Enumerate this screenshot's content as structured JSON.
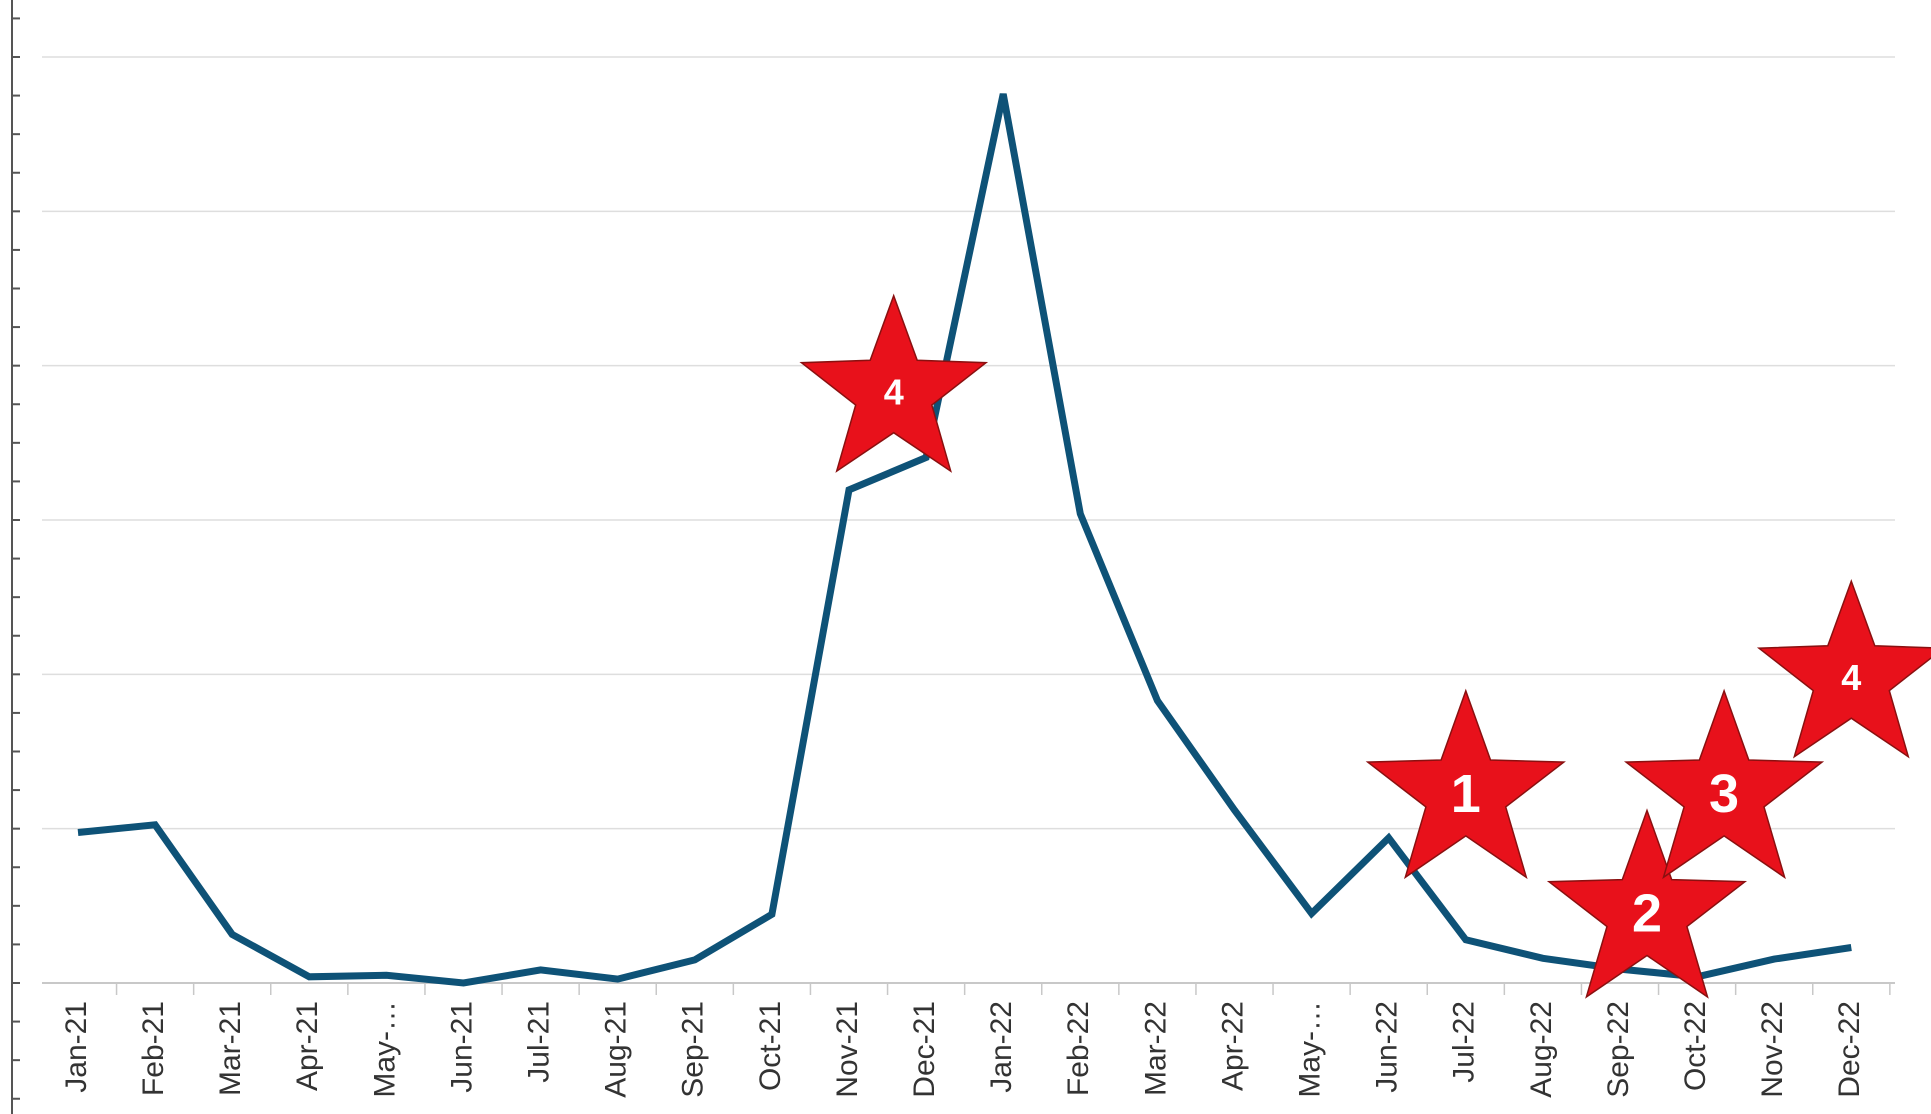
{
  "chart_data": {
    "type": "line",
    "title": "",
    "xlabel": "",
    "ylabel": "",
    "categories": [
      "Jan-21",
      "Feb-21",
      "Mar-21",
      "Apr-21",
      "May-…",
      "Jun-21",
      "Jul-21",
      "Aug-21",
      "Sep-21",
      "Oct-21",
      "Nov-21",
      "Dec-21",
      "Jan-22",
      "Feb-22",
      "Mar-22",
      "Apr-22",
      "May-…",
      "Jun-22",
      "Jul-22",
      "Aug-22",
      "Sep-22",
      "Oct-22",
      "Nov-22",
      "Dec-22"
    ],
    "series": [
      {
        "color": "#0e5277",
        "values": [
          19.5,
          20.5,
          6.3,
          0.8,
          1.0,
          0,
          1.7,
          0.5,
          3.0,
          8.9,
          63.9,
          68.1,
          115.2,
          60.8,
          36.6,
          22.4,
          9.0,
          18.8,
          5.6,
          3.2,
          1.8,
          0.8,
          3.1,
          4.6
        ]
      }
    ],
    "ylim": [
      0,
      120
    ],
    "gridlines": [
      0,
      20,
      40,
      60,
      80,
      100,
      120
    ],
    "grid": true,
    "legend": "none",
    "annotations": [
      {
        "label": "4",
        "near": "Nov-21",
        "value": 76.5,
        "color": "#e8111b"
      },
      {
        "label": "1",
        "near": "Jul-22",
        "value": 24.5,
        "color": "#e8111b"
      },
      {
        "label": "2",
        "near": "Sep-22",
        "value": 9.0,
        "color": "#e8111b"
      },
      {
        "label": "3",
        "near": "Oct-22",
        "value": 24.5,
        "color": "#e8111b"
      },
      {
        "label": "4",
        "near": "Dec-22",
        "value": 39.5,
        "color": "#e8111b"
      }
    ]
  }
}
